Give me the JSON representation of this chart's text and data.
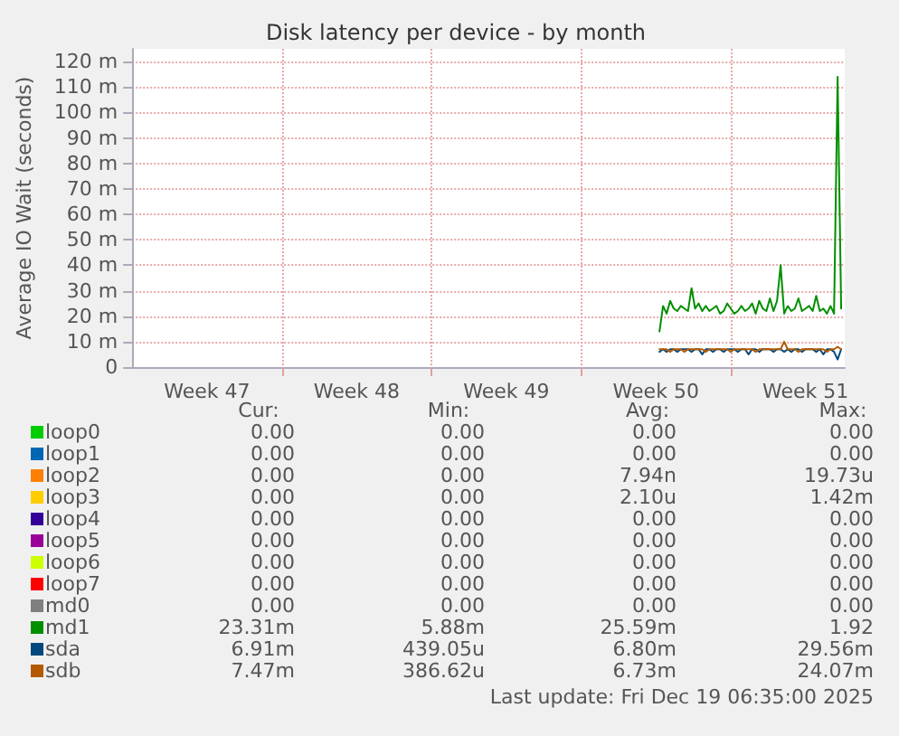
{
  "chart_data": {
    "type": "line",
    "title": "Disk latency per device - by month",
    "ylabel": "Average IO Wait (seconds)",
    "x": [
      "2025-12-10T16:00",
      "2025-12-10T20:00",
      "2025-12-11T00:00",
      "2025-12-11T04:00",
      "2025-12-11T08:00",
      "2025-12-11T12:00",
      "2025-12-11T16:00",
      "2025-12-11T20:00",
      "2025-12-12T00:00",
      "2025-12-12T04:00",
      "2025-12-12T08:00",
      "2025-12-12T12:00",
      "2025-12-12T16:00",
      "2025-12-12T20:00",
      "2025-12-13T00:00",
      "2025-12-13T04:00",
      "2025-12-13T08:00",
      "2025-12-13T12:00",
      "2025-12-13T16:00",
      "2025-12-13T20:00",
      "2025-12-14T00:00",
      "2025-12-14T04:00",
      "2025-12-14T08:00",
      "2025-12-14T12:00",
      "2025-12-14T16:00",
      "2025-12-14T20:00",
      "2025-12-15T00:00",
      "2025-12-15T04:00",
      "2025-12-15T08:00",
      "2025-12-15T12:00",
      "2025-12-15T16:00",
      "2025-12-15T20:00",
      "2025-12-16T00:00",
      "2025-12-16T04:00",
      "2025-12-16T08:00",
      "2025-12-16T12:00",
      "2025-12-16T16:00",
      "2025-12-16T20:00",
      "2025-12-17T00:00",
      "2025-12-17T04:00",
      "2025-12-17T08:00",
      "2025-12-17T12:00",
      "2025-12-17T16:00",
      "2025-12-17T20:00",
      "2025-12-18T00:00",
      "2025-12-18T04:00",
      "2025-12-18T08:00",
      "2025-12-18T12:00",
      "2025-12-18T16:00",
      "2025-12-18T20:00",
      "2025-12-19T00:00",
      "2025-12-19T04:00"
    ],
    "series": [
      {
        "name": "loop0",
        "color": "#00cc00",
        "values": [
          null,
          null,
          null,
          null,
          null,
          null,
          null,
          null,
          null,
          null,
          null,
          null,
          null,
          null,
          null,
          null,
          null,
          null,
          null,
          null,
          null,
          null,
          null,
          null,
          null,
          null,
          null,
          null,
          null,
          null,
          null,
          null,
          null,
          null,
          null,
          null,
          null,
          null,
          null,
          null,
          null,
          null,
          null,
          null,
          null,
          null,
          null,
          null,
          null,
          null,
          null,
          null
        ]
      },
      {
        "name": "loop1",
        "color": "#0066b3",
        "values": [
          null,
          null,
          null,
          null,
          null,
          null,
          null,
          null,
          null,
          null,
          null,
          null,
          null,
          null,
          null,
          null,
          null,
          null,
          null,
          null,
          null,
          null,
          null,
          null,
          null,
          null,
          null,
          null,
          null,
          null,
          null,
          null,
          null,
          null,
          null,
          null,
          null,
          null,
          null,
          null,
          null,
          null,
          null,
          null,
          null,
          null,
          null,
          null,
          null,
          null,
          null,
          null
        ]
      },
      {
        "name": "loop2",
        "color": "#ff8000",
        "values": [
          null,
          null,
          null,
          null,
          null,
          null,
          null,
          null,
          null,
          null,
          null,
          null,
          null,
          null,
          null,
          null,
          null,
          null,
          null,
          null,
          null,
          null,
          null,
          null,
          null,
          null,
          null,
          null,
          null,
          null,
          null,
          null,
          null,
          null,
          null,
          null,
          null,
          null,
          null,
          null,
          null,
          null,
          null,
          null,
          null,
          null,
          null,
          null,
          null,
          null,
          null,
          null
        ]
      },
      {
        "name": "loop3",
        "color": "#ffcc00",
        "values": [
          null,
          null,
          null,
          null,
          null,
          null,
          null,
          null,
          null,
          null,
          null,
          null,
          null,
          null,
          null,
          null,
          null,
          null,
          null,
          null,
          null,
          null,
          null,
          null,
          null,
          null,
          null,
          null,
          null,
          null,
          null,
          null,
          null,
          null,
          null,
          null,
          null,
          null,
          null,
          null,
          null,
          null,
          null,
          null,
          null,
          null,
          null,
          null,
          null,
          null,
          null,
          null
        ]
      },
      {
        "name": "loop4",
        "color": "#330099",
        "values": [
          null,
          null,
          null,
          null,
          null,
          null,
          null,
          null,
          null,
          null,
          null,
          null,
          null,
          null,
          null,
          null,
          null,
          null,
          null,
          null,
          null,
          null,
          null,
          null,
          null,
          null,
          null,
          null,
          null,
          null,
          null,
          null,
          null,
          null,
          null,
          null,
          null,
          null,
          null,
          null,
          null,
          null,
          null,
          null,
          null,
          null,
          null,
          null,
          null,
          null,
          null,
          null
        ]
      },
      {
        "name": "loop5",
        "color": "#990099",
        "values": [
          null,
          null,
          null,
          null,
          null,
          null,
          null,
          null,
          null,
          null,
          null,
          null,
          null,
          null,
          null,
          null,
          null,
          null,
          null,
          null,
          null,
          null,
          null,
          null,
          null,
          null,
          null,
          null,
          null,
          null,
          null,
          null,
          null,
          null,
          null,
          null,
          null,
          null,
          null,
          null,
          null,
          null,
          null,
          null,
          null,
          null,
          null,
          null,
          null,
          null,
          null,
          null
        ]
      },
      {
        "name": "loop6",
        "color": "#ccff00",
        "values": [
          null,
          null,
          null,
          null,
          null,
          null,
          null,
          null,
          null,
          null,
          null,
          null,
          null,
          null,
          null,
          null,
          null,
          null,
          null,
          null,
          null,
          null,
          null,
          null,
          null,
          null,
          null,
          null,
          null,
          null,
          null,
          null,
          null,
          null,
          null,
          null,
          null,
          null,
          null,
          null,
          null,
          null,
          null,
          null,
          null,
          null,
          null,
          null,
          null,
          null,
          null,
          null
        ]
      },
      {
        "name": "loop7",
        "color": "#ff0000",
        "values": [
          null,
          null,
          null,
          null,
          null,
          null,
          null,
          null,
          null,
          null,
          null,
          null,
          null,
          null,
          null,
          null,
          null,
          null,
          null,
          null,
          null,
          null,
          null,
          null,
          null,
          null,
          null,
          null,
          null,
          null,
          null,
          null,
          null,
          null,
          null,
          null,
          null,
          null,
          null,
          null,
          null,
          null,
          null,
          null,
          null,
          null,
          null,
          null,
          null,
          null,
          null,
          null
        ]
      },
      {
        "name": "md0",
        "color": "#808080",
        "values": [
          null,
          null,
          null,
          null,
          null,
          null,
          null,
          null,
          null,
          null,
          null,
          null,
          null,
          null,
          null,
          null,
          null,
          null,
          null,
          null,
          null,
          null,
          null,
          null,
          null,
          null,
          null,
          null,
          null,
          null,
          null,
          null,
          null,
          null,
          null,
          null,
          null,
          null,
          null,
          null,
          null,
          null,
          null,
          null,
          null,
          null,
          null,
          null,
          null,
          null,
          null,
          null
        ]
      },
      {
        "name": "md1",
        "color": "#008f00",
        "values": [
          14,
          24,
          21,
          26,
          23,
          22,
          24,
          23,
          22,
          31,
          23,
          25,
          22,
          24,
          22,
          23,
          24,
          21,
          22,
          25,
          23,
          21,
          22,
          24,
          22,
          23,
          25,
          21,
          26,
          23,
          22,
          27,
          22,
          26,
          40,
          21,
          24,
          22,
          23,
          27,
          22,
          23,
          24,
          22,
          28,
          22,
          23,
          21,
          24,
          21,
          114,
          23
        ]
      },
      {
        "name": "sda",
        "color": "#00487d",
        "values": [
          6,
          7,
          6,
          7,
          7,
          6,
          7,
          7,
          7,
          6,
          7,
          7,
          5,
          7,
          7,
          6,
          7,
          7,
          6,
          7,
          7,
          7,
          6,
          7,
          7,
          5,
          7,
          7,
          6,
          7,
          7,
          7,
          6,
          7,
          7,
          6,
          7,
          6,
          7,
          7,
          6,
          7,
          7,
          7,
          6,
          7,
          5,
          7,
          7,
          6,
          3,
          7
        ]
      },
      {
        "name": "sdb",
        "color": "#b35a00",
        "values": [
          7,
          7,
          7,
          6,
          7,
          7,
          7,
          6,
          7,
          7,
          7,
          7,
          7,
          6,
          7,
          7,
          7,
          7,
          7,
          7,
          6,
          7,
          7,
          7,
          7,
          7,
          7,
          6,
          7,
          7,
          7,
          7,
          7,
          7,
          7,
          10,
          7,
          7,
          7,
          6,
          7,
          7,
          7,
          7,
          7,
          7,
          7,
          6,
          7,
          7,
          8,
          7
        ]
      }
    ],
    "xlim": [
      "2025-11-16T00:00",
      "2025-12-19T08:00"
    ],
    "xticks": [
      {
        "value": "2025-11-19T12:00",
        "label": "Week 47"
      },
      {
        "value": "2025-11-26T12:00",
        "label": "Week 48"
      },
      {
        "value": "2025-12-03T12:00",
        "label": "Week 49"
      },
      {
        "value": "2025-12-10T12:00",
        "label": "Week 50"
      },
      {
        "value": "2025-12-17T12:00",
        "label": "Week 51"
      },
      {
        "value": "2025-11-23T00:00",
        "label": null
      },
      {
        "value": "2025-11-30T00:00",
        "label": null
      },
      {
        "value": "2025-12-07T00:00",
        "label": null
      },
      {
        "value": "2025-12-14T00:00",
        "label": null
      }
    ],
    "ylim": [
      0,
      125
    ],
    "yticks": [
      0,
      {
        "value": 10,
        "label": "10 m"
      },
      {
        "value": 20,
        "label": "20 m"
      },
      {
        "value": 30,
        "label": "30 m"
      },
      {
        "value": 40,
        "label": "40 m"
      },
      {
        "value": 50,
        "label": "50 m"
      },
      {
        "value": 60,
        "label": "60 m"
      },
      {
        "value": 70,
        "label": "70 m"
      },
      {
        "value": 80,
        "label": "80 m"
      },
      {
        "value": 90,
        "label": "90 m"
      },
      {
        "value": 100,
        "label": "100 m"
      },
      {
        "value": 110,
        "label": "110 m"
      },
      {
        "value": 120,
        "label": "120 m"
      }
    ],
    "grid": true,
    "legend": "bottom left",
    "marker": "none",
    "line_style": "solid",
    "annotations": [
      "Cur:",
      "Min:",
      "Avg:",
      "Max:",
      "0.00",
      "0.00",
      "0.00",
      "0.00",
      "0.00",
      "0.00",
      "0.00",
      "0.00",
      "0.00",
      "0.00",
      "7.94n",
      "19.73u",
      "0.00",
      "0.00",
      "2.10u",
      "1.42m",
      "0.00",
      "0.00",
      "0.00",
      "0.00",
      "0.00",
      "0.00",
      "0.00",
      "0.00",
      "0.00",
      "0.00",
      "0.00",
      "0.00",
      "0.00",
      "0.00",
      "0.00",
      "0.00",
      "0.00",
      "0.00",
      "0.00",
      "0.00",
      "23.31m",
      "5.88m",
      "25.59m",
      "1.92",
      "6.91m",
      "439.05u",
      "6.80m",
      "29.56m",
      "7.47m",
      "386.62u",
      "6.73m",
      "24.07m",
      "Last update: Fri Dec 19 06:35:00 2025"
    ]
  }
}
